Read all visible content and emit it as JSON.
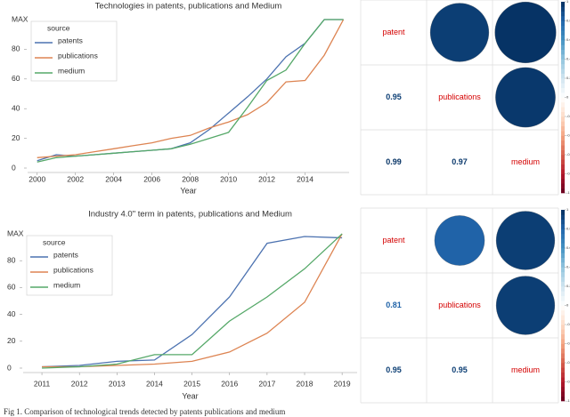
{
  "chart_data": [
    {
      "type": "line",
      "title": "Technologies in patents, publications and Medium",
      "x_label": "Year",
      "legend_title": "source",
      "legend": "top-left",
      "x": [
        2000,
        2001,
        2002,
        2003,
        2004,
        2005,
        2006,
        2007,
        2008,
        2009,
        2010,
        2011,
        2012,
        2013,
        2014,
        2015,
        2016
      ],
      "xlim": [
        1999.5,
        2016.3
      ],
      "xticks": [
        2000,
        2002,
        2004,
        2006,
        2008,
        2010,
        2012,
        2014
      ],
      "ylim": [
        0,
        100
      ],
      "yticks": [
        0,
        20,
        40,
        60,
        80,
        {
          "value": 100,
          "label": "MAX"
        }
      ],
      "series": [
        {
          "name": "patents",
          "color": "#4c72b0",
          "values": [
            5,
            9,
            8,
            9,
            10,
            11,
            12,
            13,
            17,
            26,
            37,
            48,
            60,
            75,
            84,
            100,
            100
          ]
        },
        {
          "name": "publications",
          "color": "#dd8452",
          "values": [
            7,
            8,
            9,
            11,
            13,
            15,
            17,
            20,
            22,
            27,
            31,
            36,
            44,
            58,
            59,
            76,
            100
          ]
        },
        {
          "name": "medium",
          "color": "#55a868",
          "values": [
            4,
            7,
            8,
            9,
            10,
            11,
            12,
            13,
            16,
            20,
            24,
            41,
            59,
            66,
            84,
            100,
            100
          ]
        }
      ]
    },
    {
      "type": "corrplot",
      "labels": [
        "patent",
        "publications",
        "medium"
      ],
      "matrix": [
        [
          null,
          0.95,
          0.99
        ],
        [
          0.95,
          null,
          0.97
        ],
        [
          0.99,
          0.97,
          null
        ]
      ],
      "clim": [
        -1,
        1
      ],
      "colorbar_ticks": [
        1,
        0.8,
        0.6,
        0.4,
        0.2,
        0,
        -0.2,
        -0.4,
        -0.6,
        -0.8,
        -1
      ]
    },
    {
      "type": "line",
      "title": "Industry 4.0\" term in patents, publications and Medium",
      "x_label": "Year",
      "legend_title": "source",
      "legend": "top-left",
      "x": [
        2011,
        2012,
        2013,
        2014,
        2015,
        2016,
        2017,
        2018,
        2019
      ],
      "xlim": [
        2010.5,
        2019.4
      ],
      "xticks": [
        2011,
        2012,
        2013,
        2014,
        2015,
        2016,
        2017,
        2018,
        2019
      ],
      "ylim": [
        0,
        100
      ],
      "yticks": [
        0,
        20,
        40,
        60,
        80,
        {
          "value": 100,
          "label": "MAX"
        }
      ],
      "series": [
        {
          "name": "patents",
          "color": "#4c72b0",
          "values": [
            1,
            2,
            5,
            6,
            25,
            53,
            93,
            98,
            97
          ]
        },
        {
          "name": "publications",
          "color": "#dd8452",
          "values": [
            1,
            1,
            2,
            3,
            5,
            12,
            26,
            49,
            100
          ]
        },
        {
          "name": "medium",
          "color": "#55a868",
          "values": [
            0,
            1,
            3,
            10,
            10,
            35,
            53,
            74,
            100
          ]
        }
      ]
    },
    {
      "type": "corrplot",
      "labels": [
        "patent",
        "publications",
        "medium"
      ],
      "matrix": [
        [
          null,
          0.81,
          0.95
        ],
        [
          0.81,
          null,
          0.95
        ],
        [
          0.95,
          0.95,
          null
        ]
      ],
      "clim": [
        -1,
        1
      ],
      "colorbar_ticks": [
        1,
        0.8,
        0.6,
        0.4,
        0.2,
        0,
        -0.2,
        -0.4,
        -0.6,
        -0.8,
        -1
      ]
    }
  ],
  "caption": "Fig 1. Comparison of technological trends detected by patents publications and medium"
}
